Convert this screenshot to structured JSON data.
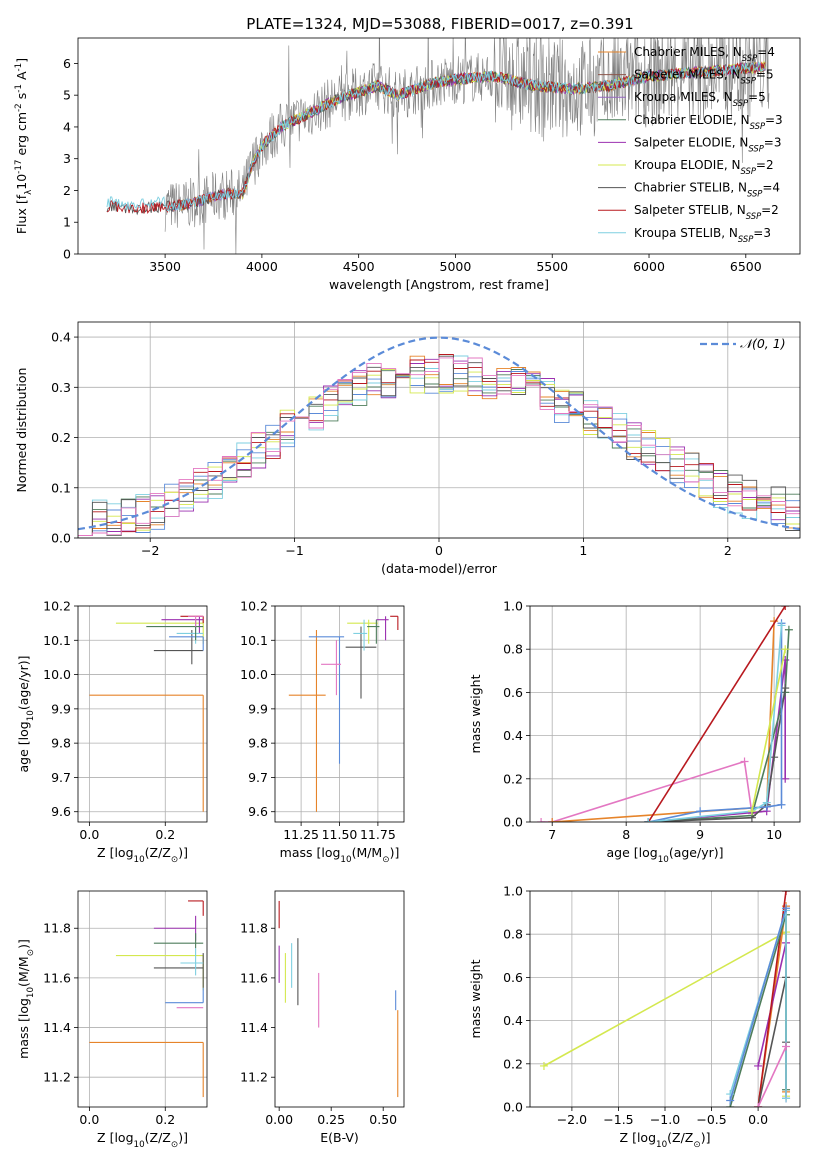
{
  "title": "PLATE=1324, MJD=53088, FIBERID=0017, z=0.391",
  "colors": {
    "chabrier_miles": "#e6842a",
    "salpeter_miles": "#8c564b",
    "kroupa_miles": "#9467bd",
    "chabrier_elodie": "#4e7d5b",
    "salpeter_elodie": "#9b30b0",
    "kroupa_elodie": "#d4e84f",
    "chabrier_stelib": "#555555",
    "salpeter_stelib": "#b8191f",
    "kroupa_stelib": "#7ecfe0",
    "spectrum": "#808080",
    "gauss": "#5b8bd8",
    "pink": "#e377c2",
    "blue": "#5b8bd8"
  },
  "chart_data": [
    {
      "id": "spectrum",
      "type": "line",
      "xlabel": "wavelength [Angstrom, rest frame]",
      "ylabel": "Flux [f$_\\lambda$10$^{-17}$ erg cm$^{-2}$ s$^{-1}$ A$^{-1}$]",
      "xlim": [
        3050,
        6780
      ],
      "ylim": [
        0,
        6.8
      ],
      "xticks": [
        3500,
        4000,
        4500,
        5000,
        5500,
        6000,
        6500
      ],
      "yticks": [
        0,
        1,
        2,
        3,
        4,
        5,
        6
      ],
      "grid": false,
      "legend": "right",
      "legend_entries": [
        "Chabrier MILES, N_SSP=4",
        "Salpeter MILES, N_SSP=5",
        "Kroupa MILES, N_SSP=5",
        "Chabrier ELODIE, N_SSP=3",
        "Salpeter ELODIE, N_SSP=3",
        "Kroupa ELODIE, N_SSP=2",
        "Chabrier STELIB, N_SSP=4",
        "Salpeter STELIB, N_SSP=2",
        "Kroupa STELIB, N_SSP=3"
      ],
      "model_continuum": {
        "x": [
          3200,
          3250,
          3300,
          3400,
          3500,
          3600,
          3700,
          3800,
          3900,
          3950,
          4000,
          4100,
          4200,
          4300,
          4400,
          4500,
          4600,
          4700,
          4800,
          4900,
          5000,
          5200,
          5400,
          5600,
          5800,
          6000,
          6200,
          6400,
          6600
        ],
        "y": [
          1.5,
          1.5,
          1.4,
          1.45,
          1.5,
          1.55,
          1.7,
          1.9,
          1.9,
          2.8,
          3.4,
          4.0,
          4.3,
          4.6,
          4.9,
          5.1,
          5.3,
          5.0,
          5.2,
          5.4,
          5.5,
          5.6,
          5.3,
          5.2,
          5.3,
          5.6,
          5.7,
          5.8,
          5.9
        ]
      }
    },
    {
      "id": "residuals",
      "type": "histogram",
      "xlabel": "(data-model)/error",
      "ylabel": "Normed distribution",
      "xlim": [
        -2.5,
        2.5
      ],
      "ylim": [
        0,
        0.43
      ],
      "xticks": [
        -2,
        -1,
        0,
        1,
        2
      ],
      "yticks": [
        0.0,
        0.1,
        0.2,
        0.3,
        0.4
      ],
      "grid": true,
      "legend": "top-right",
      "legend_entries": [
        "$\\mathcal{N}(0, 1)$"
      ],
      "envelope": {
        "x": [
          -2.5,
          -2.0,
          -1.5,
          -1.0,
          -0.5,
          0.0,
          0.5,
          1.0,
          1.5,
          2.0,
          2.5
        ],
        "y": [
          0.03,
          0.05,
          0.12,
          0.23,
          0.31,
          0.33,
          0.31,
          0.25,
          0.17,
          0.09,
          0.05
        ]
      }
    },
    {
      "id": "age_vs_Z",
      "type": "scatter",
      "xlabel": "Z [log$_{10}$(Z/Z$_\\odot$)]",
      "ylabel": "age  [log$_{10}$(age/yr)]",
      "xlim": [
        -0.03,
        0.31
      ],
      "ylim": [
        9.57,
        10.2
      ],
      "xticks": [
        0.0,
        0.2
      ],
      "yticks": [
        9.6,
        9.7,
        9.8,
        9.9,
        10.0,
        10.1,
        10.2
      ],
      "grid": true,
      "errors": [
        {
          "series": "chabrier_miles",
          "x": 0.3,
          "y": 9.94,
          "xerr": [
            0.3,
            0.0
          ],
          "yerr": [
            0.34,
            0.0
          ]
        },
        {
          "series": "kroupa_elodie",
          "x": 0.3,
          "y": 10.15,
          "xerr": [
            0.23,
            0.0
          ],
          "yerr": [
            0.06,
            0.01
          ]
        },
        {
          "series": "chabrier_stelib",
          "x": 0.27,
          "y": 10.07,
          "xerr": [
            0.1,
            0.03
          ],
          "yerr": [
            0.04,
            0.06
          ]
        },
        {
          "series": "salpeter_stelib",
          "x": 0.3,
          "y": 10.17,
          "xerr": [
            0.06,
            0.0
          ],
          "yerr": [
            0.02,
            0.0
          ]
        },
        {
          "series": "salpeter_elodie",
          "x": 0.29,
          "y": 10.16,
          "xerr": [
            0.1,
            0.01
          ],
          "yerr": [
            0.04,
            0.01
          ]
        },
        {
          "series": "kroupa_stelib",
          "x": 0.28,
          "y": 10.12,
          "xerr": [
            0.05,
            0.02
          ],
          "yerr": [
            0.03,
            0.02
          ]
        },
        {
          "series": "blue",
          "x": 0.3,
          "y": 10.11,
          "xerr": [
            0.09,
            0.0
          ],
          "yerr": [
            0.04,
            0.0
          ]
        },
        {
          "series": "chabrier_elodie",
          "x": 0.28,
          "y": 10.14,
          "xerr": [
            0.13,
            0.02
          ],
          "yerr": [
            0.04,
            0.02
          ]
        },
        {
          "series": "pink",
          "x": 0.28,
          "y": 10.17,
          "xerr": [
            0.02,
            0.02
          ],
          "yerr": [
            0.03,
            0.0
          ]
        }
      ]
    },
    {
      "id": "age_vs_mass",
      "type": "scatter",
      "xlabel": "mass [log$_{10}$(M/M$_\\odot$)]",
      "ylabel": "",
      "xlim": [
        11.08,
        11.92
      ],
      "ylim": [
        9.57,
        10.2
      ],
      "xticks": [
        11.25,
        11.5,
        11.75
      ],
      "yticks": [
        9.6,
        9.7,
        9.8,
        9.9,
        10.0,
        10.1,
        10.2
      ],
      "grid": true,
      "errors": [
        {
          "series": "chabrier_miles",
          "x": 11.35,
          "y": 9.94,
          "xerr": [
            0.18,
            0.06
          ],
          "yerr": [
            0.34,
            0.19
          ]
        },
        {
          "series": "blue",
          "x": 11.5,
          "y": 10.11,
          "xerr": [
            0.2,
            0.03
          ],
          "yerr": [
            0.37,
            0.0
          ]
        },
        {
          "series": "pink",
          "x": 11.48,
          "y": 10.03,
          "xerr": [
            0.1,
            0.03
          ],
          "yerr": [
            0.09,
            0.07
          ]
        },
        {
          "series": "chabrier_stelib",
          "x": 11.64,
          "y": 10.08,
          "xerr": [
            0.1,
            0.1
          ],
          "yerr": [
            0.15,
            0.06
          ]
        },
        {
          "series": "kroupa_elodie",
          "x": 11.69,
          "y": 10.15,
          "xerr": [
            0.14,
            0.06
          ],
          "yerr": [
            0.06,
            0.01
          ]
        },
        {
          "series": "kroupa_stelib",
          "x": 11.66,
          "y": 10.12,
          "xerr": [
            0.07,
            0.02
          ],
          "yerr": [
            0.05,
            0.04
          ]
        },
        {
          "series": "salpeter_elodie",
          "x": 11.8,
          "y": 10.16,
          "xerr": [
            0.06,
            0.02
          ],
          "yerr": [
            0.06,
            0.01
          ]
        },
        {
          "series": "salpeter_stelib",
          "x": 11.88,
          "y": 10.17,
          "xerr": [
            0.05,
            0.0
          ],
          "yerr": [
            0.04,
            0.0
          ]
        },
        {
          "series": "chabrier_elodie",
          "x": 11.74,
          "y": 10.14,
          "xerr": [
            0.06,
            0.02
          ],
          "yerr": [
            0.05,
            0.02
          ]
        }
      ]
    },
    {
      "id": "weight_vs_age",
      "type": "line",
      "xlabel": "age  [log$_{10}$(age/yr)]",
      "ylabel": "mass weight",
      "xlim": [
        6.7,
        10.35
      ],
      "ylim": [
        0,
        1
      ],
      "xticks": [
        7,
        8,
        9,
        10
      ],
      "yticks": [
        0.0,
        0.2,
        0.4,
        0.6,
        0.8,
        1.0
      ],
      "grid": true,
      "series": [
        {
          "series": "pink",
          "x": [
            6.85,
            7.0,
            9.6,
            9.7
          ],
          "y": [
            0.0,
            0.0,
            0.28,
            0.04
          ]
        },
        {
          "series": "chabrier_miles",
          "x": [
            7.0,
            9.9,
            10.0
          ],
          "y": [
            0.0,
            0.07,
            0.93
          ]
        },
        {
          "series": "salpeter_elodie",
          "x": [
            8.3,
            9.9,
            10.15,
            10.15
          ],
          "y": [
            0.0,
            0.05,
            0.75,
            0.2
          ]
        },
        {
          "series": "salpeter_stelib",
          "x": [
            8.3,
            10.15
          ],
          "y": [
            0.0,
            1.0
          ]
        },
        {
          "series": "chabrier_elodie",
          "x": [
            8.3,
            9.7,
            10.15,
            10.2
          ],
          "y": [
            0.0,
            0.03,
            0.6,
            0.89
          ]
        },
        {
          "series": "chabrier_stelib",
          "x": [
            8.3,
            9.7,
            9.9,
            10.0,
            10.15
          ],
          "y": [
            0.0,
            0.02,
            0.08,
            0.3,
            0.62
          ]
        },
        {
          "series": "blue",
          "x": [
            8.3,
            9.0,
            9.9,
            10.1,
            10.1
          ],
          "y": [
            0.0,
            0.05,
            0.07,
            0.08,
            0.92
          ]
        },
        {
          "series": "kroupa_stelib",
          "x": [
            8.3,
            9.7,
            9.9,
            10.1
          ],
          "y": [
            0.0,
            0.05,
            0.09,
            0.91
          ]
        },
        {
          "series": "kroupa_elodie",
          "x": [
            9.7,
            10.15
          ],
          "y": [
            0.05,
            0.8
          ]
        }
      ]
    },
    {
      "id": "mass_vs_Z",
      "type": "scatter",
      "xlabel": "Z [log$_{10}$(Z/Z$_\\odot$)]",
      "ylabel": "mass [log$_{10}$(M/M$_\\odot$)]",
      "xlim": [
        -0.03,
        0.31
      ],
      "ylim": [
        11.08,
        11.95
      ],
      "xticks": [
        0.0,
        0.2
      ],
      "yticks": [
        11.2,
        11.4,
        11.6,
        11.8
      ],
      "grid": true,
      "errors": [
        {
          "series": "chabrier_miles",
          "x": 0.3,
          "y": 11.34,
          "xerr": [
            0.3,
            0.0
          ],
          "yerr": [
            0.22,
            0.0
          ]
        },
        {
          "series": "kroupa_elodie",
          "x": 0.3,
          "y": 11.69,
          "xerr": [
            0.23,
            0.0
          ],
          "yerr": [
            0.14,
            0.0
          ]
        },
        {
          "series": "chabrier_stelib",
          "x": 0.3,
          "y": 11.64,
          "xerr": [
            0.13,
            0.0
          ],
          "yerr": [
            0.08,
            0.06
          ]
        },
        {
          "series": "salpeter_stelib",
          "x": 0.3,
          "y": 11.91,
          "xerr": [
            0.04,
            0.0
          ],
          "yerr": [
            0.06,
            0.0
          ]
        },
        {
          "series": "salpeter_elodie",
          "x": 0.28,
          "y": 11.8,
          "xerr": [
            0.11,
            0.0
          ],
          "yerr": [
            0.05,
            0.05
          ]
        },
        {
          "series": "kroupa_stelib",
          "x": 0.28,
          "y": 11.66,
          "xerr": [
            0.04,
            0.02
          ],
          "yerr": [
            0.05,
            0.06
          ]
        },
        {
          "series": "blue",
          "x": 0.3,
          "y": 11.5,
          "xerr": [
            0.1,
            0.0
          ],
          "yerr": [
            0.0,
            0.06
          ]
        },
        {
          "series": "chabrier_elodie",
          "x": 0.28,
          "y": 11.74,
          "xerr": [
            0.11,
            0.02
          ],
          "yerr": [
            0.02,
            0.04
          ]
        },
        {
          "series": "pink",
          "x": 0.28,
          "y": 11.48,
          "xerr": [
            0.05,
            0.02
          ],
          "yerr": [
            0.0,
            0.0
          ]
        }
      ]
    },
    {
      "id": "mass_vs_ebv",
      "type": "scatter",
      "xlabel": "E(B-V)",
      "ylabel": "",
      "xlim": [
        -0.02,
        0.6
      ],
      "ylim": [
        11.08,
        11.95
      ],
      "xticks": [
        0.0,
        0.25,
        0.5
      ],
      "yticks": [
        11.2,
        11.4,
        11.6,
        11.8
      ],
      "grid": false,
      "errors": [
        {
          "series": "salpeter_stelib",
          "x": 0.0,
          "y": 11.8,
          "xerr": [
            0.0,
            0.0
          ],
          "yerr": [
            0.0,
            0.11
          ]
        },
        {
          "series": "salpeter_elodie",
          "x": 0.0,
          "y": 11.68,
          "xerr": [
            0.0,
            0.0
          ],
          "yerr": [
            0.1,
            0.05
          ]
        },
        {
          "series": "kroupa_elodie",
          "x": 0.03,
          "y": 11.6,
          "xerr": [
            0.0,
            0.0
          ],
          "yerr": [
            0.1,
            0.1
          ]
        },
        {
          "series": "kroupa_stelib",
          "x": 0.06,
          "y": 11.62,
          "xerr": [
            0.0,
            0.0
          ],
          "yerr": [
            0.06,
            0.12
          ]
        },
        {
          "series": "chabrier_stelib",
          "x": 0.09,
          "y": 11.62,
          "xerr": [
            0.0,
            0.0
          ],
          "yerr": [
            0.13,
            0.14
          ]
        },
        {
          "series": "pink",
          "x": 0.19,
          "y": 11.5,
          "xerr": [
            0.0,
            0.0
          ],
          "yerr": [
            0.1,
            0.12
          ]
        },
        {
          "series": "blue",
          "x": 0.56,
          "y": 11.5,
          "xerr": [
            0.0,
            0.0
          ],
          "yerr": [
            0.03,
            0.05
          ]
        },
        {
          "series": "chabrier_miles",
          "x": 0.57,
          "y": 11.3,
          "xerr": [
            0.0,
            0.0
          ],
          "yerr": [
            0.18,
            0.17
          ]
        }
      ]
    },
    {
      "id": "weight_vs_Z",
      "type": "line",
      "xlabel": "Z [log$_{10}$(Z/Z$_\\odot$)]",
      "ylabel": "mass weight",
      "xlim": [
        -2.45,
        0.45
      ],
      "ylim": [
        0,
        1
      ],
      "xticks": [
        -2.0,
        -1.5,
        -1.0,
        -0.5,
        0.0
      ],
      "yticks": [
        0.0,
        0.2,
        0.4,
        0.6,
        0.8,
        1.0
      ],
      "grid": true,
      "series": [
        {
          "series": "kroupa_elodie",
          "x": [
            -2.3,
            0.3,
            0.3
          ],
          "y": [
            0.19,
            0.81,
            0.05
          ]
        },
        {
          "series": "chabrier_miles",
          "x": [
            0.0,
            0.3,
            0.3
          ],
          "y": [
            0.0,
            0.93,
            0.07
          ]
        },
        {
          "series": "salpeter_elodie",
          "x": [
            0.0,
            0.3,
            0.3
          ],
          "y": [
            0.19,
            0.76,
            0.04
          ]
        },
        {
          "series": "salpeter_stelib",
          "x": [
            0.0,
            0.3
          ],
          "y": [
            0.0,
            1.0
          ]
        },
        {
          "series": "chabrier_stelib",
          "x": [
            0.0,
            0.3,
            0.3
          ],
          "y": [
            0.0,
            0.6,
            0.3
          ]
        },
        {
          "series": "chabrier_elodie",
          "x": [
            -0.3,
            0.3,
            0.3
          ],
          "y": [
            0.0,
            0.89,
            0.08
          ]
        },
        {
          "series": "kroupa_stelib",
          "x": [
            -0.3,
            0.3,
            0.3
          ],
          "y": [
            0.06,
            0.91,
            0.04
          ]
        },
        {
          "series": "blue",
          "x": [
            -0.3,
            0.3
          ],
          "y": [
            0.03,
            0.92
          ]
        },
        {
          "series": "pink",
          "x": [
            0.0,
            0.3
          ],
          "y": [
            0.0,
            0.28
          ]
        }
      ]
    }
  ]
}
